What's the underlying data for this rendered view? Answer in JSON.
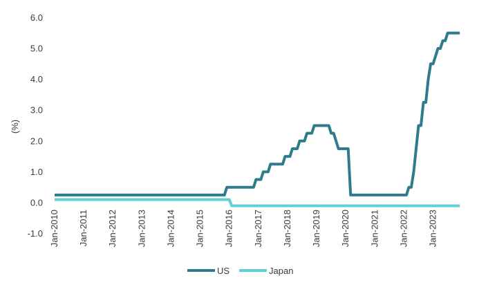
{
  "chart_data": {
    "type": "line",
    "title": "",
    "xlabel": "",
    "ylabel": "(%)",
    "ylim": [
      -1.0,
      6.0
    ],
    "xlim": [
      "2010-01",
      "2023-12"
    ],
    "y_ticks": [
      6.0,
      5.0,
      4.0,
      3.0,
      2.0,
      1.0,
      0.0,
      -1.0
    ],
    "y_tick_labels": [
      "6.0",
      "5.0",
      "4.0",
      "3.0",
      "2.0",
      "1.0",
      "0.0",
      "-1.0"
    ],
    "x_ticks": [
      "2010-01",
      "2011-01",
      "2012-01",
      "2013-01",
      "2014-01",
      "2015-01",
      "2016-01",
      "2017-01",
      "2018-01",
      "2019-01",
      "2020-01",
      "2021-01",
      "2022-01",
      "2023-01"
    ],
    "x_tick_labels": [
      "Jan-2010",
      "Jan-2011",
      "Jan-2012",
      "Jan-2013",
      "Jan-2014",
      "Jan-2015",
      "Jan-2016",
      "Jan-2017",
      "Jan-2018",
      "Jan-2019",
      "Jan-2020",
      "Jan-2021",
      "Jan-2022",
      "Jan-2023"
    ],
    "grid": false,
    "legend_position": "bottom",
    "series": [
      {
        "name": "US",
        "color": "#2e7b8c",
        "points": [
          [
            "2010-01",
            0.25
          ],
          [
            "2015-11",
            0.25
          ],
          [
            "2015-12",
            0.5
          ],
          [
            "2016-11",
            0.5
          ],
          [
            "2016-12",
            0.75
          ],
          [
            "2017-02",
            0.75
          ],
          [
            "2017-03",
            1.0
          ],
          [
            "2017-05",
            1.0
          ],
          [
            "2017-06",
            1.25
          ],
          [
            "2017-11",
            1.25
          ],
          [
            "2017-12",
            1.5
          ],
          [
            "2018-02",
            1.5
          ],
          [
            "2018-03",
            1.75
          ],
          [
            "2018-05",
            1.75
          ],
          [
            "2018-06",
            2.0
          ],
          [
            "2018-08",
            2.0
          ],
          [
            "2018-09",
            2.25
          ],
          [
            "2018-11",
            2.25
          ],
          [
            "2018-12",
            2.5
          ],
          [
            "2019-06",
            2.5
          ],
          [
            "2019-07",
            2.25
          ],
          [
            "2019-08",
            2.25
          ],
          [
            "2019-09",
            2.0
          ],
          [
            "2019-10",
            1.75
          ],
          [
            "2020-02",
            1.75
          ],
          [
            "2020-03",
            0.25
          ],
          [
            "2022-02",
            0.25
          ],
          [
            "2022-03",
            0.5
          ],
          [
            "2022-04",
            0.5
          ],
          [
            "2022-05",
            1.0
          ],
          [
            "2022-06",
            1.75
          ],
          [
            "2022-07",
            2.5
          ],
          [
            "2022-08",
            2.5
          ],
          [
            "2022-09",
            3.25
          ],
          [
            "2022-10",
            3.25
          ],
          [
            "2022-11",
            4.0
          ],
          [
            "2022-12",
            4.5
          ],
          [
            "2023-01",
            4.5
          ],
          [
            "2023-02",
            4.75
          ],
          [
            "2023-03",
            5.0
          ],
          [
            "2023-04",
            5.0
          ],
          [
            "2023-05",
            5.25
          ],
          [
            "2023-06",
            5.25
          ],
          [
            "2023-07",
            5.5
          ],
          [
            "2023-12",
            5.5
          ]
        ]
      },
      {
        "name": "Japan",
        "color": "#5fd0d3",
        "points": [
          [
            "2010-01",
            0.1
          ],
          [
            "2016-01",
            0.1
          ],
          [
            "2016-02",
            -0.1
          ],
          [
            "2023-12",
            -0.1
          ]
        ]
      }
    ]
  }
}
